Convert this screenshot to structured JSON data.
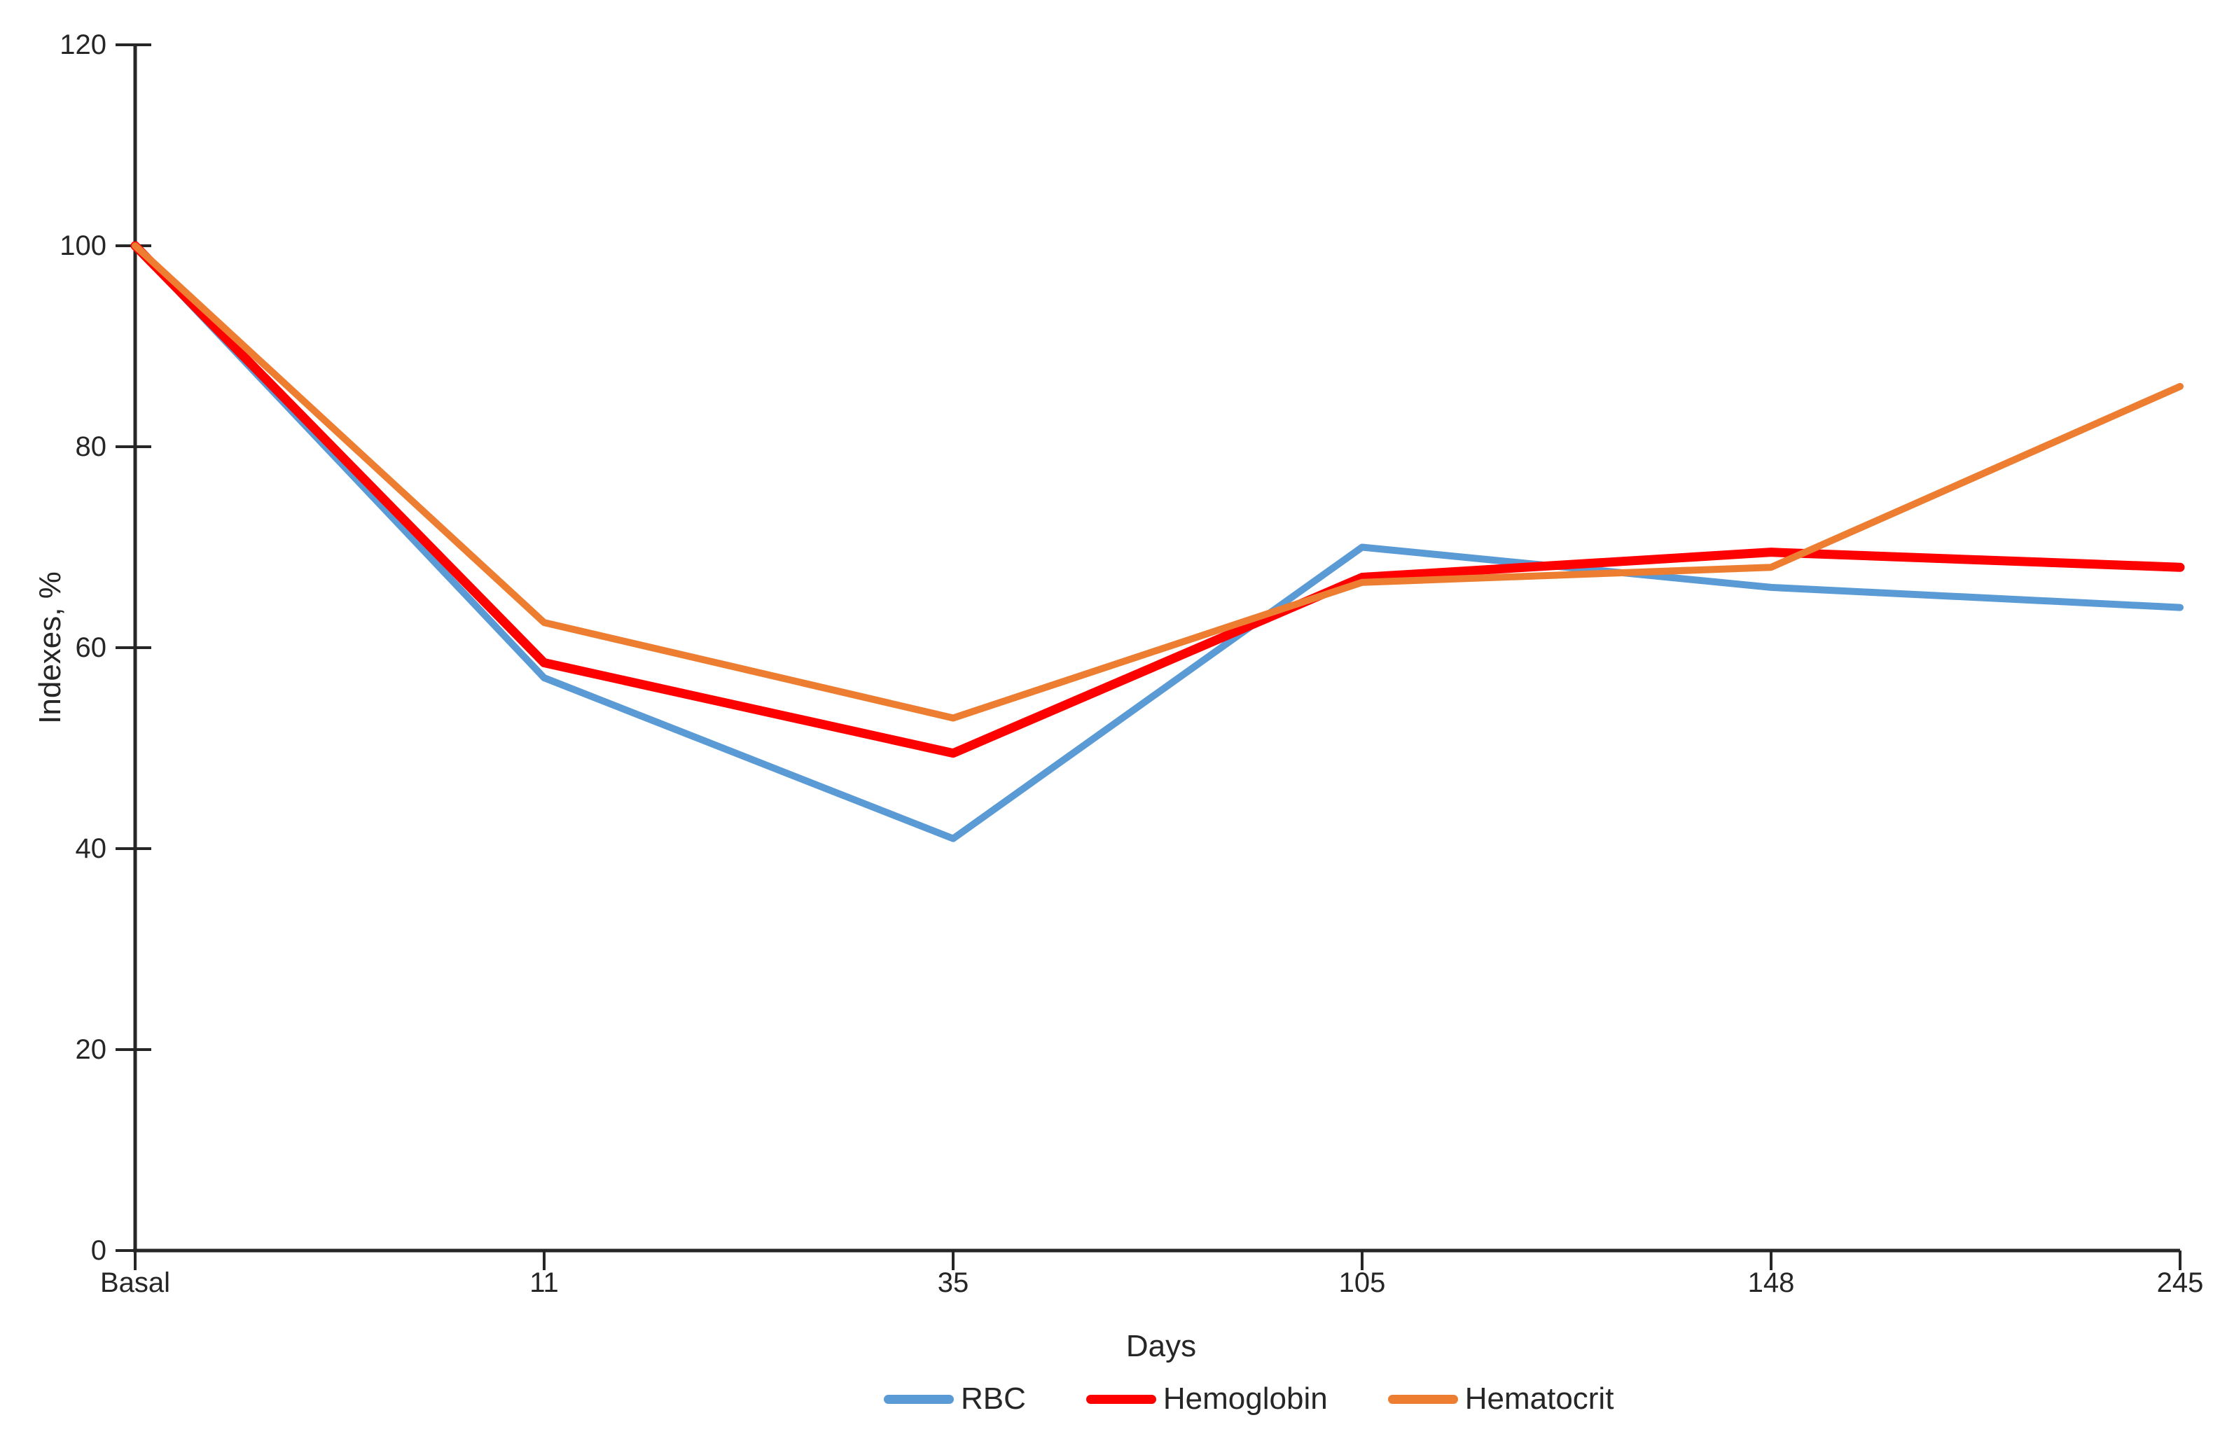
{
  "chart": {
    "background_color": "#FFFFFF",
    "axis_color": "#262626",
    "text_color": "#262626"
  },
  "chart_data": {
    "type": "line",
    "title": "",
    "xlabel": "Days",
    "ylabel": "Indexes, %",
    "categories": [
      "Basal",
      "11",
      "35",
      "105",
      "148",
      "245"
    ],
    "series": [
      {
        "name": "RBC",
        "color": "#5B9BD5",
        "values": [
          100,
          57,
          41,
          70,
          66,
          64
        ]
      },
      {
        "name": "Hemoglobin",
        "color": "#FF0000",
        "values": [
          100,
          58.5,
          49.5,
          67,
          69.5,
          68
        ]
      },
      {
        "name": "Hematocrit",
        "color": "#ED7D31",
        "values": [
          100,
          62.5,
          53,
          66.5,
          68,
          86
        ]
      }
    ],
    "ylim": [
      0,
      120
    ],
    "yticks": [
      0,
      20,
      40,
      60,
      80,
      100,
      120
    ],
    "grid": false,
    "legend_position": "bottom"
  }
}
